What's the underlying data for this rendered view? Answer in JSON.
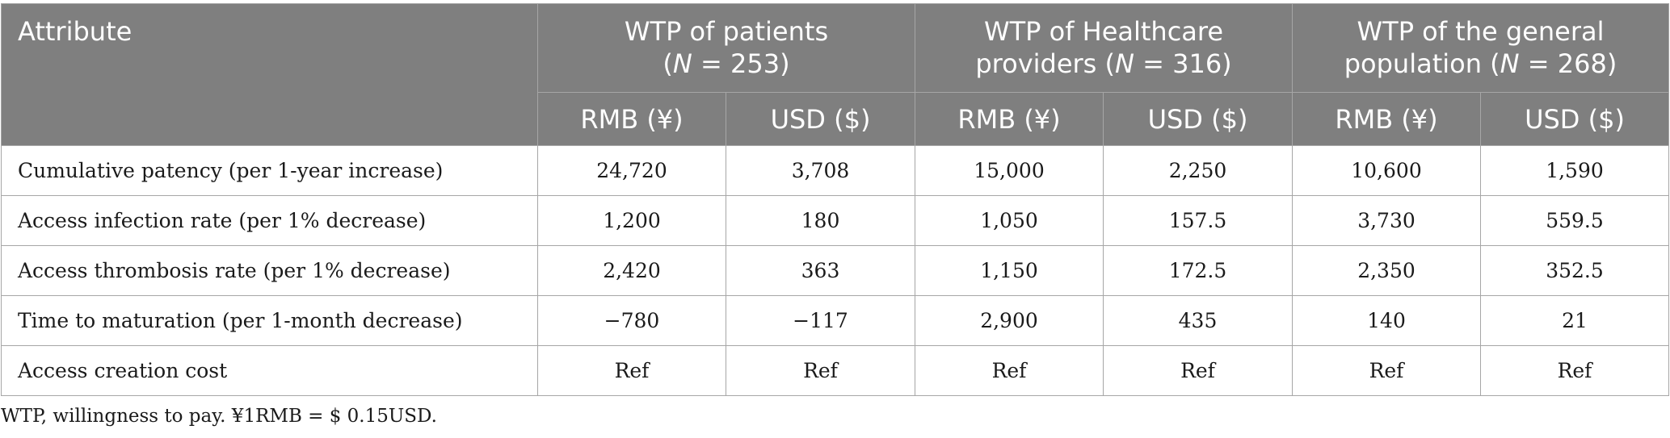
{
  "table": {
    "attribute_header": "Attribute",
    "groups": [
      {
        "line1": "WTP of patients",
        "line2_pre": "(",
        "n_label": "N",
        "line2_post": " = 253)"
      },
      {
        "line1": "WTP of Healthcare",
        "line2_pre": "providers (",
        "n_label": "N",
        "line2_post": " = 316)"
      },
      {
        "line1": "WTP of the general",
        "line2_pre": "population (",
        "n_label": "N",
        "line2_post": " = 268)"
      }
    ],
    "sub_headers": [
      "RMB (¥)",
      "USD ($)",
      "RMB (¥)",
      "USD ($)",
      "RMB (¥)",
      "USD ($)"
    ],
    "rows": [
      {
        "label": "Cumulative patency (per 1-year increase)",
        "cells": [
          "24,720",
          "3,708",
          "15,000",
          "2,250",
          "10,600",
          "1,590"
        ]
      },
      {
        "label": "Access infection rate (per 1% decrease)",
        "cells": [
          "1,200",
          "180",
          "1,050",
          "157.5",
          "3,730",
          "559.5"
        ]
      },
      {
        "label": "Access thrombosis rate (per 1% decrease)",
        "cells": [
          "2,420",
          "363",
          "1,150",
          "172.5",
          "2,350",
          "352.5"
        ]
      },
      {
        "label": "Time to maturation (per 1-month decrease)",
        "cells": [
          "−780",
          "−117",
          "2,900",
          "435",
          "140",
          "21"
        ]
      },
      {
        "label": "Access creation cost",
        "cells": [
          "Ref",
          "Ref",
          "Ref",
          "Ref",
          "Ref",
          "Ref"
        ]
      }
    ],
    "header_bg_color": "#7f7f7f",
    "header_text_color": "#ffffff",
    "border_color": "#a6a6a6"
  },
  "footnote": "WTP, willingness to pay. ¥1RMB = $ 0.15USD."
}
